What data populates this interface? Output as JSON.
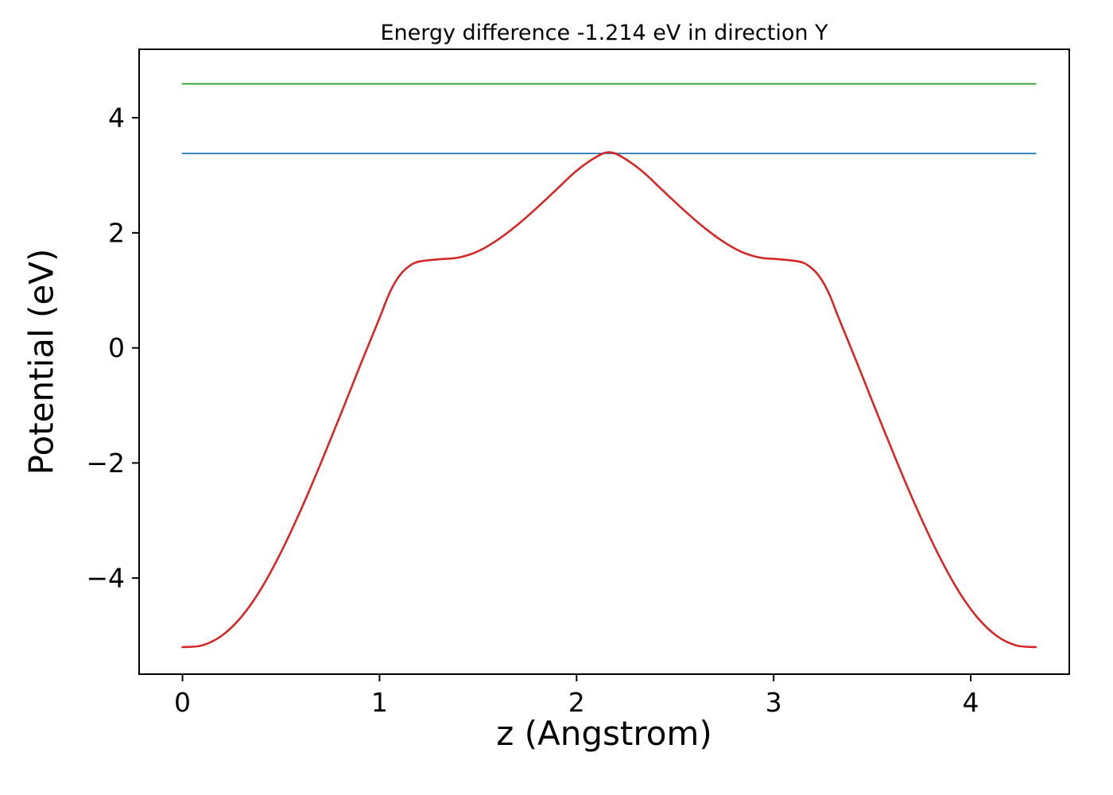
{
  "chart_data": {
    "type": "line",
    "title": "Energy difference -1.214 eV in direction Y",
    "xlabel": "z (Angstrom)",
    "ylabel": "Potential (eV)",
    "xlim": [
      -0.22,
      4.5
    ],
    "ylim": [
      -5.67,
      5.19
    ],
    "grid": false,
    "legend": "none",
    "x_ticks": [
      0,
      1,
      2,
      3,
      4
    ],
    "x_tick_labels": [
      "0",
      "1",
      "2",
      "3",
      "4"
    ],
    "y_ticks": [
      -4,
      -2,
      0,
      2,
      4
    ],
    "y_tick_labels": [
      "−4",
      "−2",
      "0",
      "2",
      "4"
    ],
    "colors": {
      "potential_curve": "#d62728",
      "reference_level_lower": "#1f77b4",
      "reference_level_upper": "#2ca02c",
      "axes": "#000000"
    },
    "series": [
      {
        "name": "reference-level-lower",
        "color": "#1f77b4",
        "width": 1.8,
        "x": [
          0,
          4.33
        ],
        "y": [
          3.38,
          3.38
        ]
      },
      {
        "name": "reference-level-upper",
        "color": "#2ca02c",
        "width": 1.8,
        "x": [
          0,
          4.33
        ],
        "y": [
          4.59,
          4.59
        ]
      },
      {
        "name": "potential-profile",
        "color": "#d62728",
        "width": 2.6,
        "x": [
          0,
          0.1,
          0.2,
          0.3,
          0.4,
          0.5,
          0.6,
          0.7,
          0.8,
          0.9,
          1.0,
          1.05,
          1.1,
          1.15,
          1.2,
          1.3,
          1.4,
          1.5,
          1.6,
          1.7,
          1.8,
          1.9,
          2.0,
          2.1,
          2.165,
          2.23,
          2.33,
          2.43,
          2.53,
          2.63,
          2.73,
          2.83,
          2.93,
          3.03,
          3.13,
          3.18,
          3.23,
          3.28,
          3.33,
          3.43,
          3.53,
          3.63,
          3.73,
          3.83,
          3.93,
          4.03,
          4.13,
          4.23,
          4.33
        ],
        "y": [
          -5.2,
          -5.17,
          -5.0,
          -4.67,
          -4.18,
          -3.55,
          -2.82,
          -2.02,
          -1.18,
          -0.32,
          0.52,
          0.95,
          1.25,
          1.42,
          1.5,
          1.54,
          1.57,
          1.68,
          1.88,
          2.14,
          2.44,
          2.76,
          3.08,
          3.32,
          3.4,
          3.32,
          3.08,
          2.76,
          2.44,
          2.14,
          1.88,
          1.68,
          1.57,
          1.54,
          1.5,
          1.42,
          1.25,
          0.95,
          0.52,
          -0.32,
          -1.18,
          -2.02,
          -2.82,
          -3.55,
          -4.18,
          -4.67,
          -5.0,
          -5.17,
          -5.2
        ]
      }
    ]
  }
}
